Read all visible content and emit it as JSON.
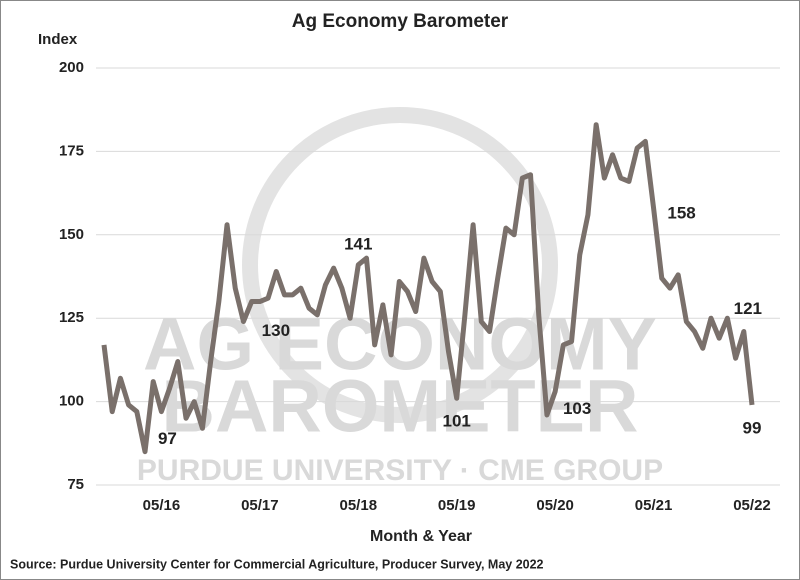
{
  "chart_data": {
    "type": "line",
    "title": "Ag Economy Barometer",
    "y_label": "Index",
    "x_label": "Month & Year",
    "source": "Source: Purdue University Center for Commercial Agriculture, Producer Survey, May 2022",
    "watermark": {
      "line1": "AG ECONOMY",
      "line2": "BAROMETER",
      "line3": "PURDUE UNIVERSITY · CME GROUP"
    },
    "categories": [
      null,
      null,
      null,
      null,
      null,
      null,
      null,
      "05/16",
      null,
      null,
      null,
      null,
      null,
      null,
      null,
      null,
      null,
      null,
      null,
      "05/17",
      null,
      null,
      null,
      null,
      null,
      null,
      null,
      null,
      null,
      null,
      null,
      "05/18",
      null,
      null,
      null,
      null,
      null,
      null,
      null,
      null,
      null,
      null,
      null,
      "05/19",
      null,
      null,
      null,
      null,
      null,
      null,
      null,
      null,
      null,
      null,
      null,
      "05/20",
      null,
      null,
      null,
      null,
      null,
      null,
      null,
      null,
      null,
      null,
      null,
      "05/21",
      null,
      null,
      null,
      null,
      null,
      null,
      null,
      null,
      null,
      null,
      null,
      "05/22"
    ],
    "series": [
      {
        "name": "Index",
        "color": "#7a706b",
        "values": [
          117,
          97,
          107,
          99,
          97,
          85,
          106,
          97,
          104,
          112,
          95,
          100,
          92,
          112,
          130,
          153,
          134,
          124,
          130,
          130,
          131,
          139,
          132,
          132,
          134,
          128,
          126,
          135,
          140,
          134,
          125,
          141,
          143,
          117,
          129,
          114,
          136,
          133,
          127,
          143,
          136,
          133,
          115,
          101,
          126,
          153,
          124,
          121,
          137,
          152,
          150,
          167,
          168,
          126,
          96,
          103,
          117,
          118,
          144,
          156,
          183,
          167,
          174,
          167,
          166,
          176,
          178,
          158,
          137,
          134,
          138,
          124,
          121,
          116,
          125,
          119,
          125,
          113,
          121,
          99
        ],
        "value_labels": [
          null,
          null,
          null,
          null,
          null,
          null,
          null,
          "97",
          null,
          null,
          null,
          null,
          null,
          null,
          null,
          null,
          null,
          null,
          null,
          "130",
          null,
          null,
          null,
          null,
          null,
          null,
          null,
          null,
          null,
          null,
          null,
          "141",
          null,
          null,
          null,
          null,
          null,
          null,
          null,
          null,
          null,
          null,
          null,
          "101",
          null,
          null,
          null,
          null,
          null,
          null,
          null,
          null,
          null,
          null,
          null,
          "103",
          null,
          null,
          null,
          null,
          null,
          null,
          null,
          null,
          null,
          null,
          null,
          "158",
          null,
          null,
          null,
          null,
          null,
          null,
          null,
          null,
          null,
          null,
          "121",
          "99"
        ]
      }
    ],
    "ylim": [
      75,
      200
    ],
    "yticks": [
      75,
      100,
      125,
      150,
      175,
      200
    ],
    "grid": true
  }
}
